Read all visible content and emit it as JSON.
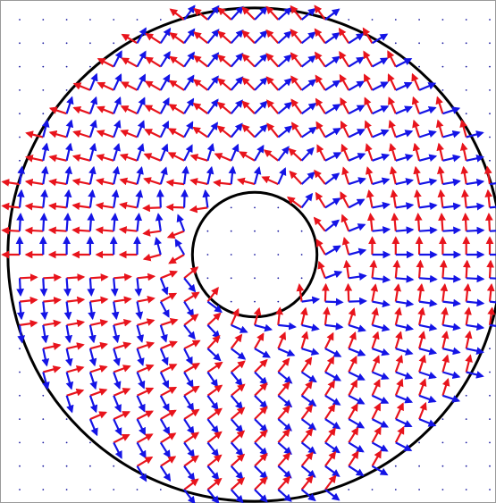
{
  "chart_data": {
    "type": "quiver",
    "x": [
      -10,
      -9,
      -8,
      -7,
      -6,
      -5,
      -4,
      -3,
      -2,
      -1,
      0,
      1,
      2,
      3,
      4,
      5,
      6,
      7,
      8,
      9,
      10
    ],
    "y": [
      10,
      9,
      8,
      7,
      6,
      5,
      4,
      3,
      2,
      1,
      0,
      -1,
      -2,
      -3,
      -4,
      -5,
      -6,
      -7,
      -8,
      -9,
      -10
    ],
    "inner_radius": 2.65,
    "outer_radius": 10.5,
    "colors": [
      "#e8141c",
      "#1414e6"
    ],
    "angles": [
      [
        null,
        null,
        null,
        null,
        null,
        null,
        null,
        143,
        141,
        138,
        135,
        132,
        129,
        127,
        null,
        null,
        null,
        null,
        null,
        null,
        null
      ],
      [
        null,
        null,
        null,
        null,
        null,
        150,
        147,
        144,
        141,
        138,
        135,
        132,
        129,
        126,
        123,
        121,
        null,
        null,
        null,
        null,
        null
      ],
      [
        null,
        null,
        null,
        null,
        153,
        151,
        148,
        145,
        142,
        139,
        135,
        132,
        128,
        125,
        122,
        119,
        117,
        null,
        null,
        null,
        null
      ],
      [
        null,
        null,
        null,
        158,
        155,
        153,
        150,
        147,
        143,
        139,
        135,
        131,
        127,
        123,
        120,
        117,
        115,
        113,
        null,
        null,
        null
      ],
      [
        null,
        null,
        162,
        160,
        158,
        155,
        152,
        148,
        144,
        140,
        135,
        130,
        126,
        122,
        118,
        115,
        113,
        110,
        108,
        null,
        null
      ],
      [
        null,
        166,
        164,
        162,
        160,
        158,
        154,
        151,
        146,
        141,
        135,
        129,
        124,
        120,
        116,
        113,
        110,
        108,
        106,
        105,
        null
      ],
      [
        null,
        168,
        167,
        165,
        163,
        161,
        158,
        153,
        163,
        157,
        150,
        143,
        137,
        117,
        113,
        109,
        107,
        105,
        103,
        102,
        null
      ],
      [
        172,
        171,
        170,
        168,
        167,
        165,
        162,
        173,
        167,
        174,
        165,
        156,
        133,
        128,
        108,
        106,
        103,
        102,
        100,
        99,
        98
      ],
      [
        174,
        174,
        173,
        172,
        171,
        169,
        182,
        178,
        188,
        null,
        null,
        null,
        143,
        122,
        118,
        101,
        99,
        98,
        97,
        96,
        96
      ],
      [
        177,
        177,
        176,
        176,
        175,
        174,
        188,
        201,
        null,
        null,
        null,
        null,
        null,
        129,
        112,
        96,
        95,
        94,
        94,
        93,
        93
      ],
      [
        180,
        180,
        180,
        180,
        180,
        180,
        195,
        210,
        null,
        null,
        null,
        null,
        null,
        120,
        105,
        90,
        90,
        90,
        90,
        90,
        90
      ],
      [
        3,
        3,
        4,
        4,
        5,
        6,
        22,
        39,
        null,
        null,
        null,
        null,
        null,
        111,
        98,
        84,
        85,
        86,
        86,
        87,
        87
      ],
      [
        6,
        6,
        7,
        8,
        9,
        11,
        28,
        32,
        53,
        null,
        null,
        null,
        98,
        88,
        92,
        79,
        81,
        82,
        83,
        84,
        84
      ],
      [
        8,
        9,
        10,
        12,
        13,
        16,
        18,
        38,
        43,
        66,
        75,
        84,
        77,
        83,
        72,
        75,
        77,
        78,
        80,
        81,
        82
      ],
      [
        null,
        12,
        13,
        15,
        17,
        19,
        23,
        27,
        47,
        53,
        60,
        67,
        73,
        63,
        68,
        71,
        73,
        75,
        77,
        78,
        null
      ],
      [
        null,
        15,
        16,
        18,
        20,
        23,
        26,
        30,
        34,
        39,
        45,
        51,
        56,
        61,
        64,
        68,
        70,
        72,
        74,
        76,
        null
      ],
      [
        null,
        null,
        18,
        20,
        23,
        25,
        28,
        32,
        36,
        40,
        45,
        50,
        54,
        58,
        62,
        65,
        68,
        70,
        72,
        null,
        null
      ],
      [
        null,
        null,
        null,
        23,
        25,
        27,
        30,
        33,
        37,
        41,
        45,
        49,
        53,
        57,
        60,
        63,
        65,
        68,
        null,
        null,
        null
      ],
      [
        null,
        null,
        null,
        null,
        27,
        29,
        32,
        35,
        38,
        42,
        45,
        49,
        52,
        55,
        58,
        61,
        63,
        null,
        null,
        null,
        null
      ],
      [
        null,
        null,
        null,
        null,
        null,
        31,
        33,
        36,
        39,
        42,
        45,
        48,
        51,
        54,
        57,
        60,
        null,
        null,
        null,
        null,
        null
      ],
      [
        null,
        null,
        null,
        null,
        null,
        null,
        null,
        37,
        39,
        42,
        45,
        48,
        51,
        53,
        null,
        null,
        null,
        null,
        null,
        null,
        null
      ]
    ]
  }
}
